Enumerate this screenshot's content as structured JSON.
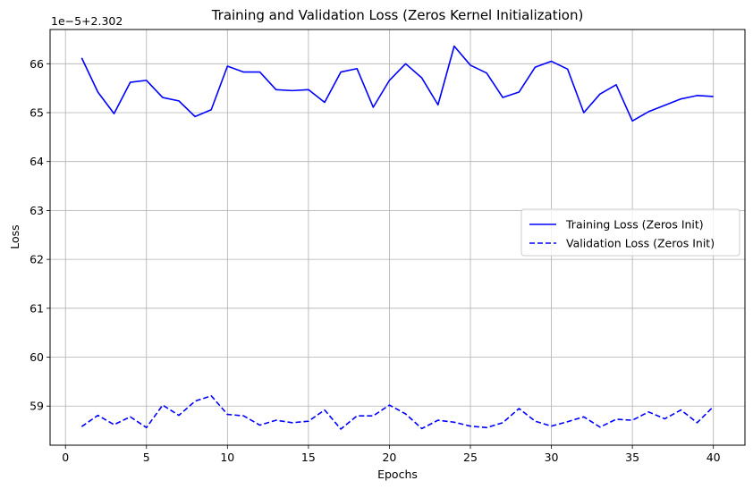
{
  "chart_data": {
    "type": "line",
    "title": "Training and Validation Loss (Zeros Kernel Initialization)",
    "xlabel": "Epochs",
    "ylabel": "Loss",
    "y_offset_text": "1e−5+2.302",
    "xlim": [
      -0.95,
      41.95
    ],
    "ylim": [
      58.2,
      66.7
    ],
    "x_ticks": [
      0,
      5,
      10,
      15,
      20,
      25,
      30,
      35,
      40
    ],
    "y_ticks": [
      59,
      60,
      61,
      62,
      63,
      64,
      65,
      66
    ],
    "grid": true,
    "legend_position": "center-right",
    "x": [
      1,
      2,
      3,
      4,
      5,
      6,
      7,
      8,
      9,
      10,
      11,
      12,
      13,
      14,
      15,
      16,
      17,
      18,
      19,
      20,
      21,
      22,
      23,
      24,
      25,
      26,
      27,
      28,
      29,
      30,
      31,
      32,
      33,
      34,
      35,
      36,
      37,
      38,
      39,
      40
    ],
    "series": [
      {
        "name": "Training Loss (Zeros Init)",
        "color": "#0000ff",
        "style": "solid",
        "values": [
          66.12,
          65.42,
          64.98,
          65.62,
          65.66,
          65.31,
          65.24,
          64.92,
          65.06,
          65.95,
          65.83,
          65.83,
          65.47,
          65.45,
          65.47,
          65.21,
          65.83,
          65.9,
          65.11,
          65.66,
          66.0,
          65.71,
          65.16,
          66.36,
          65.97,
          65.81,
          65.31,
          65.42,
          65.93,
          66.05,
          65.89,
          65.0,
          65.38,
          65.57,
          64.83,
          65.02,
          65.15,
          65.28,
          65.35,
          65.33
        ]
      },
      {
        "name": "Validation Loss (Zeros Init)",
        "color": "#0000ff",
        "style": "dashed",
        "values": [
          58.58,
          58.81,
          58.62,
          58.78,
          58.56,
          59.02,
          58.81,
          59.1,
          59.21,
          58.83,
          58.8,
          58.61,
          58.71,
          58.66,
          58.69,
          58.92,
          58.53,
          58.8,
          58.8,
          59.02,
          58.84,
          58.54,
          58.71,
          58.67,
          58.59,
          58.56,
          58.66,
          58.95,
          58.69,
          58.59,
          58.68,
          58.78,
          58.57,
          58.73,
          58.71,
          58.88,
          58.74,
          58.92,
          58.66,
          58.99
        ]
      }
    ]
  }
}
